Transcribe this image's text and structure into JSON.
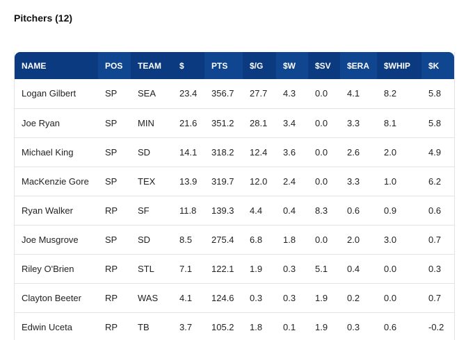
{
  "section": {
    "title": "Pitchers (12)"
  },
  "columns": [
    "NAME",
    "POS",
    "TEAM",
    "$",
    "PTS",
    "$/G",
    "$W",
    "$SV",
    "$ERA",
    "$WHIP",
    "$K"
  ],
  "rows": [
    [
      "Logan Gilbert",
      "SP",
      "SEA",
      "23.4",
      "356.7",
      "27.7",
      "4.3",
      "0.0",
      "4.1",
      "8.2",
      "5.8"
    ],
    [
      "Joe Ryan",
      "SP",
      "MIN",
      "21.6",
      "351.2",
      "28.1",
      "3.4",
      "0.0",
      "3.3",
      "8.1",
      "5.8"
    ],
    [
      "Michael King",
      "SP",
      "SD",
      "14.1",
      "318.2",
      "12.4",
      "3.6",
      "0.0",
      "2.6",
      "2.0",
      "4.9"
    ],
    [
      "MacKenzie Gore",
      "SP",
      "TEX",
      "13.9",
      "319.7",
      "12.0",
      "2.4",
      "0.0",
      "3.3",
      "1.0",
      "6.2"
    ],
    [
      "Ryan Walker",
      "RP",
      "SF",
      "11.8",
      "139.3",
      "4.4",
      "0.4",
      "8.3",
      "0.6",
      "0.9",
      "0.6"
    ],
    [
      "Joe Musgrove",
      "SP",
      "SD",
      "8.5",
      "275.4",
      "6.8",
      "1.8",
      "0.0",
      "2.0",
      "3.0",
      "0.7"
    ],
    [
      "Riley O'Brien",
      "RP",
      "STL",
      "7.1",
      "122.1",
      "1.9",
      "0.3",
      "5.1",
      "0.4",
      "0.0",
      "0.3"
    ],
    [
      "Clayton Beeter",
      "RP",
      "WAS",
      "4.1",
      "124.6",
      "0.3",
      "0.3",
      "1.9",
      "0.2",
      "0.0",
      "0.7"
    ],
    [
      "Edwin Uceta",
      "RP",
      "TB",
      "3.7",
      "105.2",
      "1.8",
      "0.1",
      "1.9",
      "0.3",
      "0.6",
      "-0.2"
    ]
  ],
  "colors": {
    "header_bg": "#0b3a80",
    "header_bg_alt": "#0f468f",
    "header_text": "#ffffff",
    "row_border": "#e3e3e3"
  }
}
